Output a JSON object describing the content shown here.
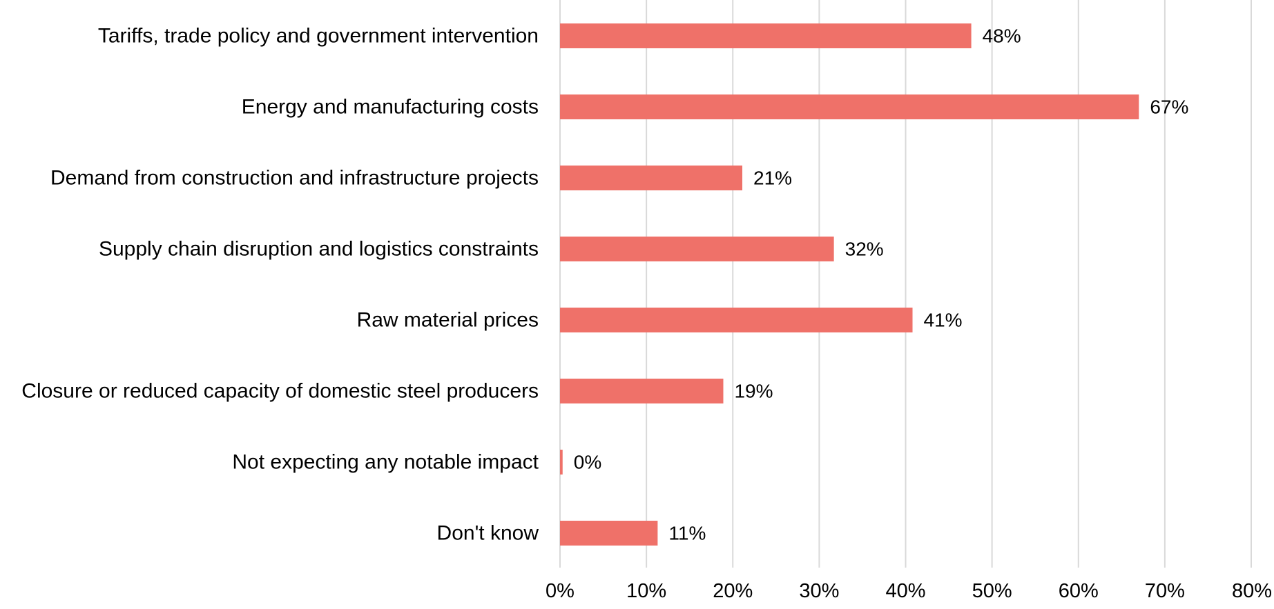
{
  "chart_data": {
    "type": "bar",
    "orientation": "horizontal",
    "categories": [
      "Tariffs, trade policy and government intervention",
      "Energy and manufacturing costs",
      "Demand from construction and infrastructure projects",
      "Supply chain disruption and logistics constraints",
      "Raw material prices",
      "Closure or reduced capacity of domestic steel producers",
      "Not expecting any notable impact",
      "Don't know"
    ],
    "values": [
      47.6,
      67.0,
      21.1,
      31.7,
      40.8,
      18.9,
      0.3,
      11.3
    ],
    "data_labels": [
      "48%",
      "67%",
      "21%",
      "32%",
      "41%",
      "19%",
      "0%",
      "11%"
    ],
    "xlim": [
      0,
      80
    ],
    "x_ticks": [
      0,
      10,
      20,
      30,
      40,
      50,
      60,
      70,
      80
    ],
    "x_tick_labels": [
      "0%",
      "10%",
      "20%",
      "30%",
      "40%",
      "50%",
      "60%",
      "70%",
      "80%"
    ],
    "grid": "vertical",
    "legend": "none",
    "title": "",
    "xlabel": "",
    "ylabel": "",
    "bar_color": "#ef7169",
    "grid_color": "#d9d9d9"
  }
}
